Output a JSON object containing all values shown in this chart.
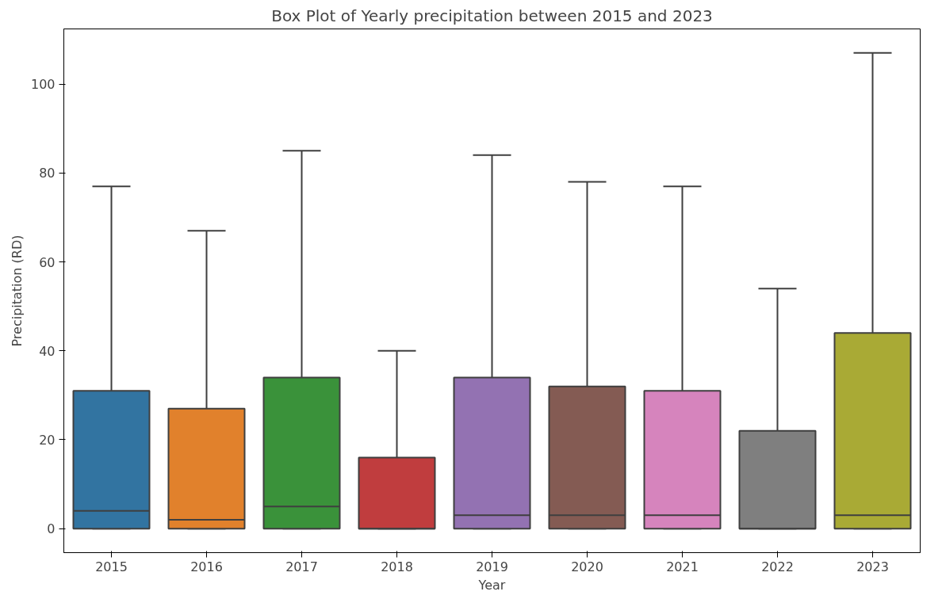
{
  "chart_data": {
    "type": "box",
    "title": "Box Plot of Yearly precipitation between 2015 and 2023",
    "xlabel": "Year",
    "ylabel": "Precipitation (RD)",
    "categories": [
      "2015",
      "2016",
      "2017",
      "2018",
      "2019",
      "2020",
      "2021",
      "2022",
      "2023"
    ],
    "colors": [
      "#3274a1",
      "#e1812c",
      "#3a923a",
      "#c03d3e",
      "#9372b2",
      "#845b53",
      "#d684bd",
      "#7f7f7f",
      "#a9aa35"
    ],
    "boxes": [
      {
        "low": 0,
        "q1": 0,
        "median": 4,
        "q3": 31,
        "high": 77
      },
      {
        "low": 0,
        "q1": 0,
        "median": 2,
        "q3": 27,
        "high": 67
      },
      {
        "low": 0,
        "q1": 0,
        "median": 5,
        "q3": 34,
        "high": 85
      },
      {
        "low": 0,
        "q1": 0,
        "median": 0,
        "q3": 16,
        "high": 40
      },
      {
        "low": 0,
        "q1": 0,
        "median": 3,
        "q3": 34,
        "high": 84
      },
      {
        "low": 0,
        "q1": 0,
        "median": 3,
        "q3": 32,
        "high": 78
      },
      {
        "low": 0,
        "q1": 0,
        "median": 3,
        "q3": 31,
        "high": 77
      },
      {
        "low": 0,
        "q1": 0,
        "median": 0,
        "q3": 22,
        "high": 54
      },
      {
        "low": 0,
        "q1": 0,
        "median": 3,
        "q3": 44,
        "high": 107
      }
    ],
    "ylim": [
      -5.4,
      112.4
    ],
    "yticks": [
      0,
      20,
      40,
      60,
      80,
      100
    ],
    "grid": false
  }
}
